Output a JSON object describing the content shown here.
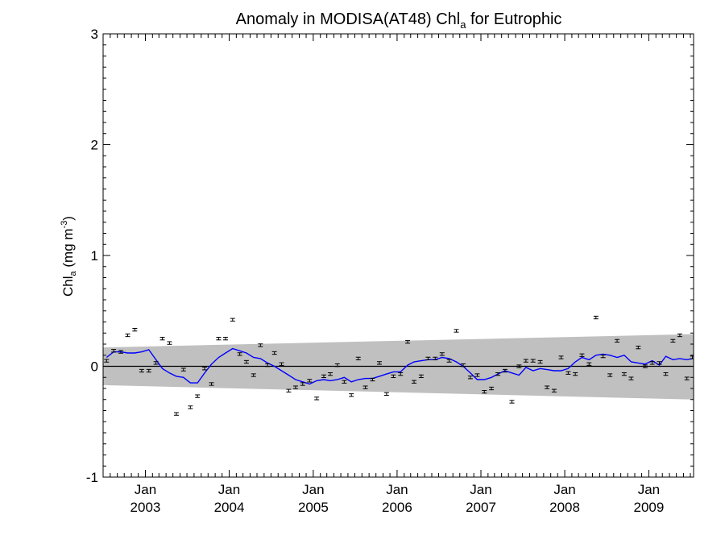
{
  "chart_data": {
    "type": "scatter",
    "title": "Anomaly in MODISA(AT48) Chl",
    "title_sub": "a",
    "title_suffix": " for Eutrophic",
    "ylabel_main": "Chl",
    "ylabel_sub": "a",
    "ylabel_unit": " (mg m",
    "ylabel_sup": "-3",
    "ylabel_close": ")",
    "xlim": [
      "2002-07-01",
      "2009-07-15"
    ],
    "ylim": [
      -1,
      3
    ],
    "y_ticks": [
      {
        "value": -1,
        "label": "-1"
      },
      {
        "value": 0,
        "label": "0"
      },
      {
        "value": 1,
        "label": "1"
      },
      {
        "value": 2,
        "label": "2"
      },
      {
        "value": 3,
        "label": "3"
      }
    ],
    "x_ticks": [
      {
        "date": "2003-01-01",
        "month": "Jan",
        "year": "2003"
      },
      {
        "date": "2004-01-01",
        "month": "Jan",
        "year": "2004"
      },
      {
        "date": "2005-01-01",
        "month": "Jan",
        "year": "2005"
      },
      {
        "date": "2006-01-01",
        "month": "Jan",
        "year": "2006"
      },
      {
        "date": "2007-01-01",
        "month": "Jan",
        "year": "2007"
      },
      {
        "date": "2008-01-01",
        "month": "Jan",
        "year": "2008"
      },
      {
        "date": "2009-01-01",
        "month": "Jan",
        "year": "2009"
      }
    ],
    "band": {
      "start": "2002-07-01",
      "end": "2009-07-15",
      "upper": [
        0.17,
        0.29
      ],
      "lower": [
        -0.17,
        -0.3
      ],
      "color": "#c0c0c0"
    },
    "zero_line": 0,
    "points": {
      "color": "#000000",
      "error": 0.012,
      "x": [
        "2002-07-16",
        "2002-08-16",
        "2002-09-16",
        "2002-10-16",
        "2002-11-16",
        "2002-12-16",
        "2003-01-16",
        "2003-02-16",
        "2003-03-16",
        "2003-04-16",
        "2003-05-16",
        "2003-06-16",
        "2003-07-16",
        "2003-08-16",
        "2003-09-16",
        "2003-10-16",
        "2003-11-16",
        "2003-12-16",
        "2004-01-16",
        "2004-02-16",
        "2004-03-16",
        "2004-04-16",
        "2004-05-16",
        "2004-06-16",
        "2004-07-16",
        "2004-08-16",
        "2004-09-16",
        "2004-10-16",
        "2004-11-16",
        "2004-12-16",
        "2005-01-16",
        "2005-02-16",
        "2005-03-16",
        "2005-04-16",
        "2005-05-16",
        "2005-06-16",
        "2005-07-16",
        "2005-08-16",
        "2005-09-16",
        "2005-10-16",
        "2005-11-16",
        "2005-12-16",
        "2006-01-16",
        "2006-02-16",
        "2006-03-16",
        "2006-04-16",
        "2006-05-16",
        "2006-06-16",
        "2006-07-16",
        "2006-08-16",
        "2006-09-16",
        "2006-10-16",
        "2006-11-16",
        "2006-12-16",
        "2007-01-16",
        "2007-02-16",
        "2007-03-16",
        "2007-04-16",
        "2007-05-16",
        "2007-06-16",
        "2007-07-16",
        "2007-08-16",
        "2007-09-16",
        "2007-10-16",
        "2007-11-16",
        "2007-12-16",
        "2008-01-16",
        "2008-02-16",
        "2008-03-16",
        "2008-04-16",
        "2008-05-16",
        "2008-06-16",
        "2008-07-16",
        "2008-08-16",
        "2008-09-16",
        "2008-10-16",
        "2008-11-16",
        "2008-12-16",
        "2009-01-16",
        "2009-02-16",
        "2009-03-16",
        "2009-04-16",
        "2009-05-16",
        "2009-06-16",
        "2009-07-10"
      ],
      "y": [
        0.05,
        0.14,
        0.13,
        0.28,
        0.33,
        -0.04,
        -0.04,
        0.03,
        0.25,
        0.21,
        -0.43,
        -0.03,
        -0.37,
        -0.27,
        -0.02,
        -0.16,
        0.25,
        0.25,
        0.42,
        0.11,
        0.04,
        -0.08,
        0.19,
        0.01,
        0.12,
        0.02,
        -0.22,
        -0.19,
        -0.16,
        -0.13,
        -0.29,
        -0.09,
        -0.07,
        0.01,
        -0.14,
        -0.26,
        0.07,
        -0.19,
        -0.12,
        0.03,
        -0.25,
        -0.09,
        -0.07,
        0.22,
        -0.14,
        -0.09,
        0.07,
        0.07,
        0.11,
        0.05,
        0.32,
        0.01,
        -0.1,
        -0.08,
        -0.23,
        -0.2,
        -0.07,
        -0.04,
        -0.32,
        0.0,
        0.05,
        0.05,
        0.04,
        -0.19,
        -0.22,
        0.08,
        -0.06,
        -0.07,
        0.1,
        0.02,
        0.44,
        0.09,
        -0.08,
        0.23,
        -0.07,
        -0.11,
        0.17,
        0.0,
        0.03,
        0.03,
        -0.07,
        0.23,
        0.28,
        -0.11,
        0.08
      ]
    },
    "smooth_line": {
      "color": "#0000ff",
      "x": [
        "2002-07-16",
        "2002-08-16",
        "2002-09-16",
        "2002-10-16",
        "2002-11-16",
        "2002-12-16",
        "2003-01-16",
        "2003-02-16",
        "2003-03-16",
        "2003-04-16",
        "2003-05-16",
        "2003-06-16",
        "2003-07-16",
        "2003-08-16",
        "2003-09-16",
        "2003-10-16",
        "2003-11-16",
        "2003-12-16",
        "2004-01-16",
        "2004-02-16",
        "2004-03-16",
        "2004-04-16",
        "2004-05-16",
        "2004-06-16",
        "2004-07-16",
        "2004-08-16",
        "2004-09-16",
        "2004-10-16",
        "2004-11-16",
        "2004-12-16",
        "2005-01-16",
        "2005-02-16",
        "2005-03-16",
        "2005-04-16",
        "2005-05-16",
        "2005-06-16",
        "2005-07-16",
        "2005-08-16",
        "2005-09-16",
        "2005-10-16",
        "2005-11-16",
        "2005-12-16",
        "2006-01-16",
        "2006-02-16",
        "2006-03-16",
        "2006-04-16",
        "2006-05-16",
        "2006-06-16",
        "2006-07-16",
        "2006-08-16",
        "2006-09-16",
        "2006-10-16",
        "2006-11-16",
        "2006-12-16",
        "2007-01-16",
        "2007-02-16",
        "2007-03-16",
        "2007-04-16",
        "2007-05-16",
        "2007-06-16",
        "2007-07-16",
        "2007-08-16",
        "2007-09-16",
        "2007-10-16",
        "2007-11-16",
        "2007-12-16",
        "2008-01-16",
        "2008-02-16",
        "2008-03-16",
        "2008-04-16",
        "2008-05-16",
        "2008-06-16",
        "2008-07-16",
        "2008-08-16",
        "2008-09-16",
        "2008-10-16",
        "2008-11-16",
        "2008-12-16",
        "2009-01-16",
        "2009-02-16",
        "2009-03-16",
        "2009-04-16",
        "2009-05-16",
        "2009-06-16",
        "2009-07-10"
      ],
      "y": [
        0.08,
        0.13,
        0.13,
        0.12,
        0.12,
        0.13,
        0.15,
        0.06,
        -0.02,
        -0.06,
        -0.09,
        -0.1,
        -0.15,
        -0.15,
        -0.06,
        0.02,
        0.08,
        0.12,
        0.16,
        0.14,
        0.12,
        0.08,
        0.07,
        0.03,
        0.0,
        -0.04,
        -0.08,
        -0.12,
        -0.14,
        -0.16,
        -0.13,
        -0.12,
        -0.13,
        -0.12,
        -0.1,
        -0.14,
        -0.12,
        -0.11,
        -0.11,
        -0.09,
        -0.07,
        -0.05,
        -0.05,
        0.01,
        0.04,
        0.05,
        0.06,
        0.06,
        0.08,
        0.07,
        0.04,
        0.0,
        -0.06,
        -0.12,
        -0.12,
        -0.1,
        -0.07,
        -0.04,
        -0.06,
        -0.08,
        -0.01,
        -0.04,
        -0.02,
        -0.03,
        -0.04,
        -0.04,
        -0.02,
        0.04,
        0.08,
        0.06,
        0.1,
        0.11,
        0.1,
        0.08,
        0.1,
        0.04,
        0.03,
        0.02,
        0.05,
        0.01,
        0.09,
        0.06,
        0.07,
        0.06,
        0.07
      ]
    }
  }
}
